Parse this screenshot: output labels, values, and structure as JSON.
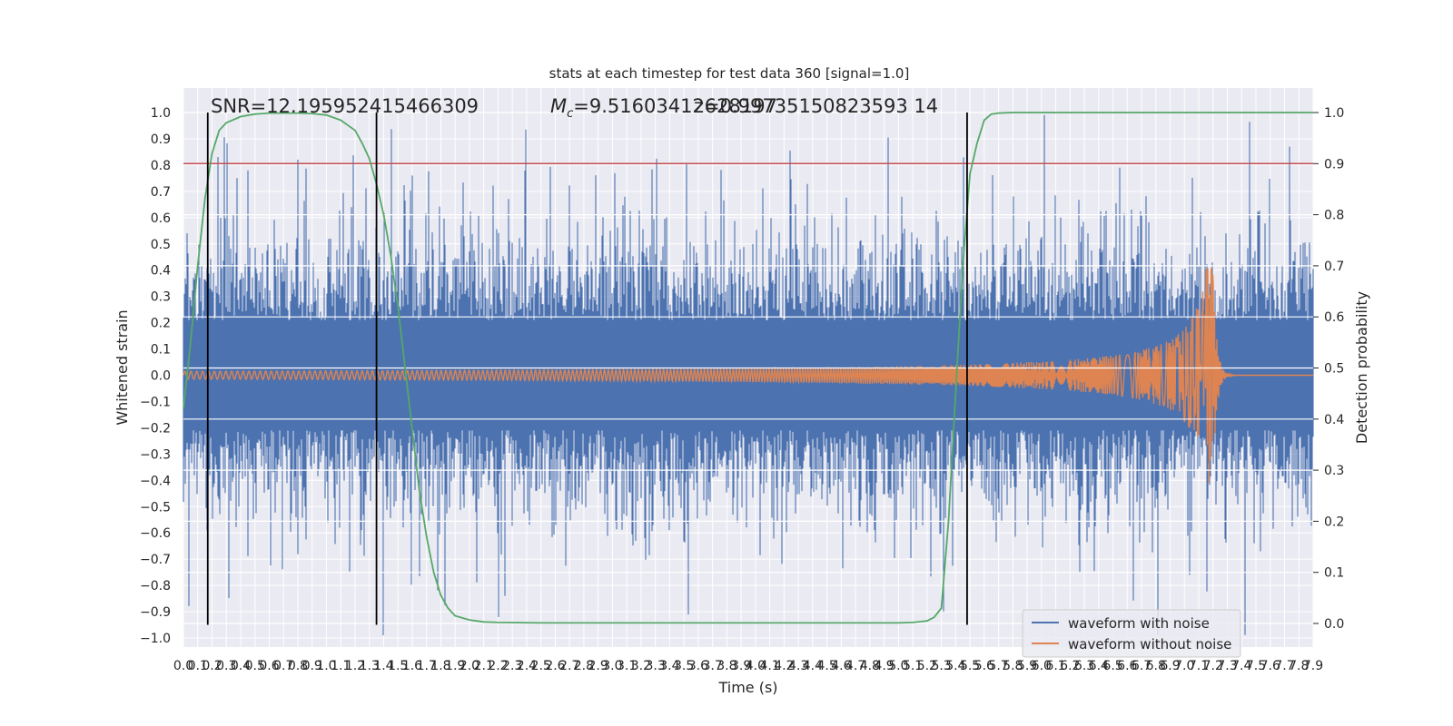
{
  "chart_data": {
    "type": "line",
    "title": "stats at each timestep for test data 360 [signal=1.0]",
    "xlabel": "Time (s)",
    "ylabel": "Whitened strain",
    "y2label": "Detection probability",
    "xlim": [
      0.0,
      7.9
    ],
    "ylim": [
      -1.05,
      1.05
    ],
    "y2lim": [
      -0.05,
      1.0
    ],
    "grid": true,
    "legend_position": "lower-right",
    "colors": {
      "noise": "#4c72b0",
      "clean": "#dd8452",
      "prob": "#55a868",
      "threshold": "#c44e52",
      "marker": "#000000",
      "background": "#eaeaf2"
    },
    "annotations": {
      "snr": "SNR=12.195952415466309",
      "mc_symbol": "M",
      "mc_subscript": "c",
      "mc_value": "=9.51603412628197",
      "z": "z=0.99735150823593 14"
    },
    "x_ticks": [
      "0.0",
      "0.1",
      "0.2",
      "0.3",
      "0.4",
      "0.5",
      "0.6",
      "0.7",
      "0.8",
      "0.9",
      "1.0",
      "1.1",
      "1.2",
      "1.3",
      "1.4",
      "1.5",
      "1.6",
      "1.7",
      "1.8",
      "1.9",
      "2.0",
      "2.1",
      "2.2",
      "2.3",
      "2.4",
      "2.5",
      "2.6",
      "2.7",
      "2.8",
      "2.9",
      "3.0",
      "3.1",
      "3.2",
      "3.3",
      "3.4",
      "3.5",
      "3.6",
      "3.7",
      "3.8",
      "3.9",
      "4.0",
      "4.1",
      "4.2",
      "4.3",
      "4.4",
      "4.5",
      "4.6",
      "4.7",
      "4.8",
      "4.9",
      "5.0",
      "5.1",
      "5.2",
      "5.3",
      "5.4",
      "5.5",
      "5.6",
      "5.7",
      "5.8",
      "5.9",
      "6.0",
      "6.1",
      "6.2",
      "6.3",
      "6.4",
      "6.5",
      "6.6",
      "6.7",
      "6.8",
      "6.9",
      "7.0",
      "7.1",
      "7.2",
      "7.3",
      "7.4",
      "7.5",
      "7.6",
      "7.7",
      "7.8",
      "7.9"
    ],
    "y_ticks": [
      "1.0",
      "0.9",
      "0.8",
      "0.7",
      "0.6",
      "0.5",
      "0.4",
      "0.3",
      "0.2",
      "0.1",
      "0.0",
      "−0.1",
      "−0.2",
      "−0.3",
      "−0.4",
      "−0.5",
      "−0.6",
      "−0.7",
      "−0.8",
      "−0.9",
      "−1.0"
    ],
    "y2_ticks": [
      "1.0",
      "0.9",
      "0.8",
      "0.7",
      "0.6",
      "0.5",
      "0.4",
      "0.3",
      "0.2",
      "0.1",
      "0.0"
    ],
    "threshold_probability": 0.9,
    "vertical_markers_x": [
      0.17,
      1.35,
      5.48
    ],
    "probability_series": {
      "x": [
        0.0,
        0.05,
        0.1,
        0.15,
        0.2,
        0.25,
        0.3,
        0.4,
        0.5,
        0.6,
        0.7,
        0.8,
        0.9,
        1.0,
        1.1,
        1.2,
        1.25,
        1.3,
        1.35,
        1.4,
        1.45,
        1.5,
        1.55,
        1.6,
        1.65,
        1.7,
        1.75,
        1.8,
        1.85,
        1.9,
        2.0,
        2.1,
        2.2,
        2.5,
        3.0,
        3.5,
        4.0,
        4.5,
        5.0,
        5.1,
        5.2,
        5.25,
        5.3,
        5.35,
        5.4,
        5.45,
        5.5,
        5.55,
        5.6,
        5.65,
        5.7,
        5.8,
        6.0,
        6.5,
        7.0,
        7.5,
        7.9
      ],
      "y": [
        0.42,
        0.55,
        0.7,
        0.83,
        0.92,
        0.965,
        0.98,
        0.992,
        0.997,
        0.999,
        0.999,
        0.999,
        0.998,
        0.995,
        0.985,
        0.965,
        0.94,
        0.91,
        0.86,
        0.8,
        0.72,
        0.62,
        0.5,
        0.38,
        0.26,
        0.17,
        0.1,
        0.055,
        0.03,
        0.015,
        0.007,
        0.003,
        0.002,
        0.001,
        0.001,
        0.001,
        0.001,
        0.001,
        0.001,
        0.002,
        0.005,
        0.012,
        0.03,
        0.2,
        0.45,
        0.7,
        0.88,
        0.94,
        0.985,
        0.997,
        0.999,
        1.0,
        1.0,
        1.0,
        1.0,
        1.0,
        1.0
      ]
    },
    "clean_waveform": {
      "t_start": 0.0,
      "t_merger": 7.2,
      "t_end": 7.9,
      "peak_amplitude": 0.41,
      "initial_amplitude": 0.015
    },
    "series": [
      {
        "name": "waveform with noise"
      },
      {
        "name": "waveform without noise"
      }
    ]
  }
}
